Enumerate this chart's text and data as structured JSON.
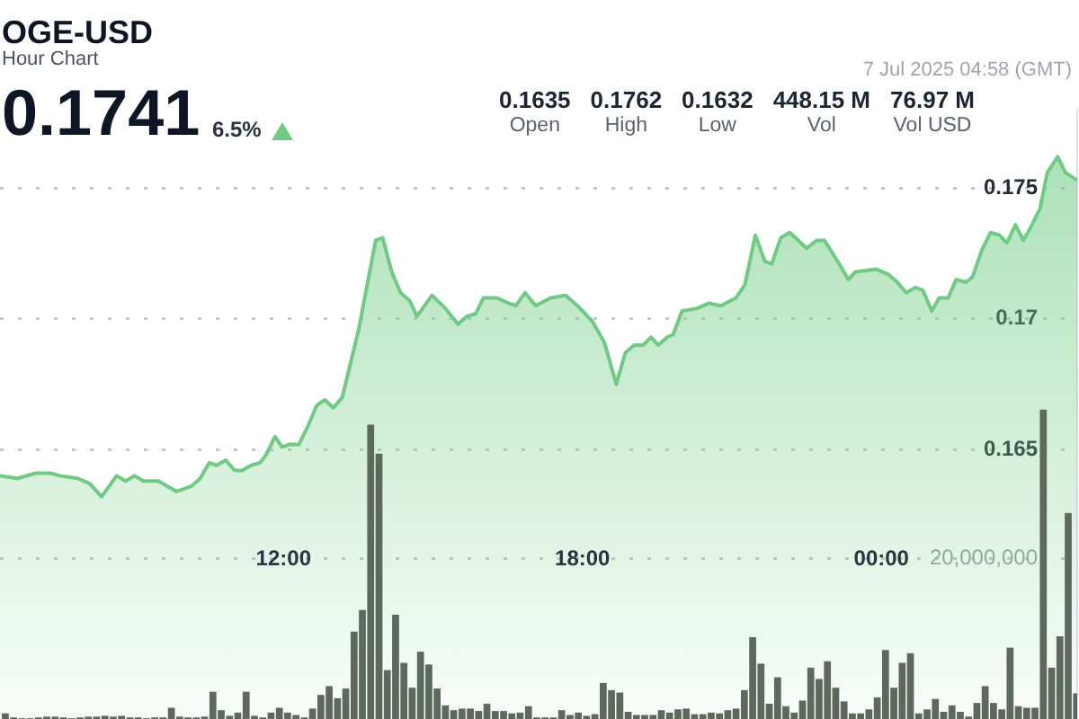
{
  "chart_data": {
    "type": "area",
    "title": "OGE-USD",
    "subtitle": "Hour Chart",
    "annotations": [
      "0.1741",
      "6.5%",
      "0.1635",
      "Open",
      "0.1762",
      "High",
      "0.1632",
      "Low",
      "448.15 M",
      "Vol",
      "76.97 M",
      "Vol USD",
      "7 Jul 2025 04:58 (GMT)"
    ],
    "xlim": [
      6.31,
      27.93
    ],
    "xticks": [
      {
        "value": 12,
        "label": "12:00"
      },
      {
        "value": 18,
        "label": "18:00"
      },
      {
        "value": 24,
        "label": "00:00"
      }
    ],
    "ylim": [
      0.1547,
      0.178
    ],
    "yticks": [
      0.165,
      0.17,
      0.175
    ],
    "y2lim": [
      0,
      76000000
    ],
    "y2ticks": [
      {
        "value": 20000000,
        "label": "20,000,000"
      }
    ],
    "grid": "y",
    "series": [
      {
        "color": "#6fcb83",
        "x": [
          6.31,
          6.67,
          7.03,
          7.33,
          7.51,
          7.87,
          8.11,
          8.35,
          8.65,
          8.83,
          9.01,
          9.19,
          9.49,
          9.85,
          10.15,
          10.33,
          10.51,
          10.66,
          10.84,
          11.02,
          11.17,
          11.35,
          11.53,
          11.65,
          11.83,
          11.97,
          12.13,
          12.31,
          12.49,
          12.67,
          12.83,
          13.0,
          13.18,
          13.51,
          13.85,
          13.99,
          14.17,
          14.35,
          14.53,
          14.68,
          14.98,
          15.25,
          15.5,
          15.68,
          15.86,
          16.01,
          16.28,
          16.52,
          16.66,
          16.85,
          17.06,
          17.36,
          17.66,
          17.9,
          18.2,
          18.44,
          18.68,
          18.86,
          19.04,
          19.22,
          19.38,
          19.52,
          19.7,
          19.82,
          20.0,
          20.3,
          20.54,
          20.78,
          21.08,
          21.26,
          21.47,
          21.66,
          21.8,
          21.98,
          22.16,
          22.5,
          22.7,
          22.86,
          23.12,
          23.34,
          23.48,
          23.9,
          24.14,
          24.32,
          24.5,
          24.68,
          24.83,
          25.01,
          25.16,
          25.34,
          25.5,
          25.7,
          25.83,
          26.01,
          26.19,
          26.37,
          26.52,
          26.69,
          26.85,
          26.97,
          27.18,
          27.33,
          27.54,
          27.69,
          27.93
        ],
        "values": [
          0.164,
          0.1639,
          0.1641,
          0.1641,
          0.164,
          0.1639,
          0.1637,
          0.1632,
          0.164,
          0.1638,
          0.164,
          0.1638,
          0.1638,
          0.1634,
          0.1636,
          0.1639,
          0.1645,
          0.1644,
          0.1646,
          0.1642,
          0.1642,
          0.1644,
          0.1645,
          0.1648,
          0.1655,
          0.1651,
          0.1652,
          0.1652,
          0.1659,
          0.1667,
          0.1669,
          0.1666,
          0.167,
          0.1696,
          0.173,
          0.1731,
          0.1718,
          0.171,
          0.1707,
          0.1701,
          0.1709,
          0.1704,
          0.1698,
          0.1701,
          0.1702,
          0.1708,
          0.1708,
          0.1706,
          0.1705,
          0.171,
          0.1705,
          0.1708,
          0.1709,
          0.1705,
          0.1699,
          0.1691,
          0.1675,
          0.1687,
          0.169,
          0.169,
          0.1693,
          0.169,
          0.1693,
          0.1694,
          0.1703,
          0.1704,
          0.1706,
          0.1705,
          0.1708,
          0.1713,
          0.1732,
          0.1722,
          0.1721,
          0.1731,
          0.1733,
          0.1727,
          0.173,
          0.173,
          0.1722,
          0.1715,
          0.1718,
          0.1719,
          0.1717,
          0.1714,
          0.171,
          0.1712,
          0.1711,
          0.1703,
          0.1708,
          0.1708,
          0.1715,
          0.1714,
          0.1716,
          0.1726,
          0.1733,
          0.1732,
          0.1729,
          0.1736,
          0.173,
          0.1734,
          0.1742,
          0.1756,
          0.1762,
          0.1756,
          0.1753
        ]
      },
      {
        "type": "bar",
        "axis": "y2",
        "color": "#5c695c",
        "x": [
          6.417,
          6.583,
          6.75,
          6.917,
          7.083,
          7.25,
          7.417,
          7.583,
          7.75,
          7.917,
          8.083,
          8.25,
          8.417,
          8.583,
          8.75,
          8.917,
          9.083,
          9.25,
          9.417,
          9.583,
          9.75,
          9.917,
          10.083,
          10.25,
          10.417,
          10.583,
          10.75,
          10.917,
          11.083,
          11.25,
          11.417,
          11.583,
          11.75,
          11.917,
          12.083,
          12.25,
          12.417,
          12.583,
          12.75,
          12.917,
          13.083,
          13.25,
          13.417,
          13.583,
          13.75,
          13.917,
          14.083,
          14.25,
          14.417,
          14.583,
          14.75,
          14.917,
          15.083,
          15.25,
          15.417,
          15.583,
          15.75,
          15.917,
          16.083,
          16.25,
          16.417,
          16.583,
          16.75,
          16.917,
          17.083,
          17.25,
          17.417,
          17.583,
          17.75,
          17.917,
          18.083,
          18.25,
          18.417,
          18.583,
          18.75,
          18.917,
          19.083,
          19.25,
          19.417,
          19.583,
          19.75,
          19.917,
          20.083,
          20.25,
          20.417,
          20.583,
          20.75,
          20.917,
          21.083,
          21.25,
          21.417,
          21.583,
          21.75,
          21.917,
          22.083,
          22.25,
          22.417,
          22.583,
          22.75,
          22.917,
          23.083,
          23.25,
          23.417,
          23.583,
          23.75,
          23.917,
          24.083,
          24.25,
          24.417,
          24.583,
          24.75,
          24.917,
          25.083,
          25.25,
          25.417,
          25.583,
          25.75,
          25.917,
          26.083,
          26.25,
          26.417,
          26.583,
          26.75,
          26.917,
          27.083,
          27.25,
          27.417,
          27.583,
          27.75,
          27.917
        ],
        "values": [
          700000,
          200000,
          100000,
          100000,
          200000,
          300000,
          300000,
          200000,
          100000,
          200000,
          300000,
          300000,
          400000,
          300000,
          400000,
          200000,
          200000,
          100000,
          200000,
          200000,
          1400000,
          300000,
          200000,
          200000,
          300000,
          3400000,
          1100000,
          400000,
          800000,
          3400000,
          400000,
          200000,
          800000,
          1400000,
          800000,
          500000,
          200000,
          1300000,
          3000000,
          4100000,
          2600000,
          3800000,
          10900000,
          13600000,
          36700000,
          33100000,
          6100000,
          13000000,
          7000000,
          3900000,
          8400000,
          6800000,
          3800000,
          1700000,
          1100000,
          1300000,
          1300000,
          1000000,
          1900000,
          1000000,
          1000000,
          700000,
          800000,
          1600000,
          200000,
          200000,
          200000,
          1100000,
          500000,
          800000,
          400000,
          600000,
          4500000,
          3600000,
          3300000,
          900000,
          500000,
          500000,
          500000,
          1100000,
          800000,
          1200000,
          1300000,
          600000,
          600000,
          800000,
          700000,
          1100000,
          1300000,
          3600000,
          10200000,
          6900000,
          1900000,
          5200000,
          1600000,
          800000,
          2300000,
          6400000,
          5000000,
          7200000,
          3900000,
          2200000,
          700000,
          700000,
          1200000,
          2700000,
          8600000,
          3900000,
          7000000,
          8200000,
          700000,
          1200000,
          2500000,
          900000,
          1700000,
          900000,
          300000,
          2000000,
          4100000,
          2000000,
          1200000,
          8900000,
          1600000,
          1400000,
          1400000,
          38600000,
          6400000,
          10300000,
          25700000,
          3200000
        ]
      }
    ]
  }
}
